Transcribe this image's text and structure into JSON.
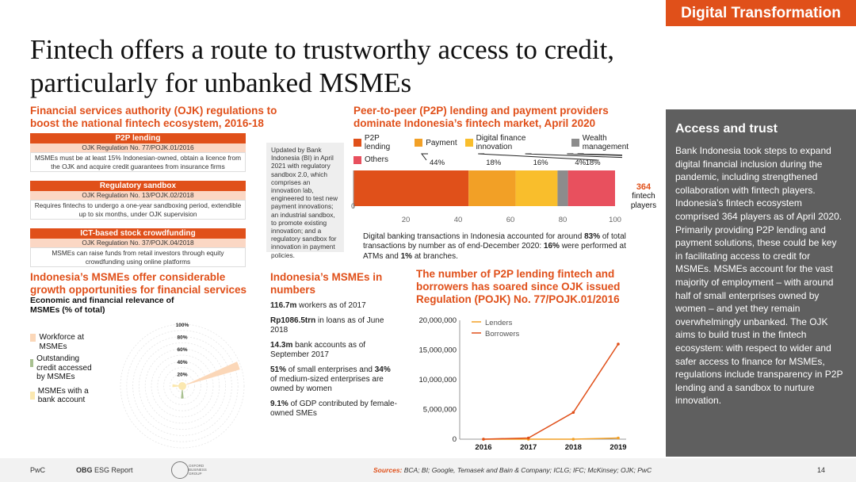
{
  "header": {
    "tag": "Digital Transformation"
  },
  "title": {
    "line1": "Fintech offers a route to trustworthy access to credit,",
    "line2": "particularly for unbanked MSMEs"
  },
  "ojk": {
    "heading": "Financial services authority (OJK) regulations to boost the national fintech ecosystem, 2016-18",
    "regs": [
      {
        "title": "P2P lending",
        "regulation": "OJK Regulation No. 77/POJK.01/2016",
        "desc": "MSMEs must be at least 15% Indonesian-owned, obtain a licence from the OJK and acquire credit guarantees from insurance firms"
      },
      {
        "title": "Regulatory sandbox",
        "regulation": "OJK Regulation No. 13/POJK.02/2018",
        "desc": "Requires fintechs to undergo a one-year sandboxing period, extendible up to six months, under OJK supervision"
      },
      {
        "title": "ICT-based stock crowdfunding",
        "regulation": "OJK Regulation No. 37/POJK.04/2018",
        "desc": "MSMEs can raise funds from retail investors through equity crowdfunding using online platforms"
      }
    ],
    "note": "Updated by Bank Indonesia (BI) in April 2021 with regulatory sandbox 2.0, which comprises an innovation lab, engineered to test new payment innovations; an industrial sandbox, to promote existing innovation; and a regulatory sandbox for innovation in payment policies."
  },
  "p2p": {
    "heading": "Peer-to-peer (P2P) lending and payment providers dominate Indonesia’s fintech market, April 2020",
    "count": "364",
    "count_label1": "fintech",
    "count_label2": "players",
    "footnote_part1": "Digital banking transactions in Indonesia accounted for around ",
    "footnote_bold1": "83%",
    "footnote_part2": " of total transactions by  number as of end-December 2020: ",
    "footnote_bold2": "16%",
    "footnote_part3": " were performed at ATMs and ",
    "footnote_bold3": "1%",
    "footnote_part4": " at branches."
  },
  "msme_chart": {
    "heading": "Indonesia’s MSMEs offer considerable growth opportunities for financial services",
    "subheading": "Economic and financial relevance of MSMEs (% of total)",
    "legend": [
      {
        "label": "Workforce at MSMEs",
        "color": "#fbd7b8"
      },
      {
        "label": "Outstanding credit accessed by MSMEs",
        "color": "#a8c090"
      },
      {
        "label": "MSMEs with a bank account",
        "color": "#fbe8b0"
      }
    ],
    "rings": [
      "100%",
      "80%",
      "60%",
      "40%",
      "20%"
    ]
  },
  "numbers": {
    "heading": "Indonesia’s MSMEs in numbers",
    "items": [
      {
        "bold": "116.7m",
        "rest": " workers as of 2017"
      },
      {
        "bold": "Rp1086.5trn",
        "rest": " in loans as of June 2018"
      },
      {
        "bold": "14.3m",
        "rest": " bank accounts as of  September 2017"
      },
      {
        "bold": "51%",
        "rest": " of small enterprises and ",
        "bold2": "34%",
        "rest2": " of medium-sized enterprises are owned by women"
      },
      {
        "bold": "9.1%",
        "rest": " of GDP contributed by female-owned SMEs"
      }
    ]
  },
  "line_chart": {
    "heading": "The number of P2P lending fintech and borrowers has soared since OJK issued Regulation (POJK) No. 77/POJK.01/2016"
  },
  "sidebar": {
    "title": "Access and trust",
    "body": "Bank Indonesia took steps to expand digital financial inclusion during the pandemic, including strengthened collaboration with fintech players. Indonesia’s fintech ecosystem comprised 364 players as of April 2020. Primarily providing P2P lending and payment solutions, these could be key in facilitating access to credit for MSMEs. MSMEs account for the vast majority of employment – with around half of small enterprises owned by women – and yet they remain overwhelmingly unbanked. The OJK aims to build trust in the fintech ecosystem: with respect to wider and safer access to finance for MSMEs, regulations include transparency in P2P lending and a sandbox to nurture innovation."
  },
  "footer": {
    "left": "PwC",
    "report_bold": "OBG",
    "report_rest": " ESG Report",
    "logo_text": "OXFORD BUSINESS GROUP",
    "sources_label": "Sources:",
    "sources": " BCA; BI; Google, Temasek and Bain & Company; ICLG; IFC; McKinsey; OJK; PwC",
    "page": "14"
  },
  "chart_data": [
    {
      "type": "bar",
      "orientation": "horizontal-stacked",
      "categories": [
        "Fintech players"
      ],
      "series": [
        {
          "name": "P2P lending",
          "values": [
            44
          ],
          "color": "#e0501a"
        },
        {
          "name": "Payment",
          "values": [
            18
          ],
          "color": "#f2a026"
        },
        {
          "name": "Digital finance innovation",
          "values": [
            16
          ],
          "color": "#f9be2c"
        },
        {
          "name": "Wealth management",
          "values": [
            4
          ],
          "color": "#8c8c8c"
        },
        {
          "name": "Others",
          "values": [
            18
          ],
          "color": "#e8505e"
        }
      ],
      "data_labels": [
        "44%",
        "18%",
        "16%",
        "4%",
        "18%"
      ],
      "xlim": [
        0,
        100
      ],
      "xticks": [
        0,
        20,
        40,
        60,
        80,
        100
      ],
      "legend": "top"
    },
    {
      "type": "line",
      "x": [
        "2016",
        "2017",
        "2018",
        "2019"
      ],
      "series": [
        {
          "name": "Lenders",
          "values": [
            0,
            0,
            0,
            200000
          ],
          "color": "#f2a026"
        },
        {
          "name": "Borrowers",
          "values": [
            0,
            200000,
            4500000,
            16000000
          ],
          "color": "#e0501a"
        }
      ],
      "ylim": [
        0,
        20000000
      ],
      "yticks": [
        "0",
        "5,000,000",
        "10,000,000",
        "15,000,000",
        "20,000,000"
      ],
      "legend": "top-left"
    },
    {
      "type": "radial",
      "series": [
        {
          "name": "Workforce at MSMEs",
          "value": 97,
          "color": "#fbd7b8"
        },
        {
          "name": "Outstanding credit accessed by MSMEs",
          "value": 20,
          "color": "#a8c090"
        },
        {
          "name": "MSMEs with a bank account",
          "value": 16,
          "color": "#fbe8b0"
        }
      ],
      "rmax": 100
    }
  ]
}
